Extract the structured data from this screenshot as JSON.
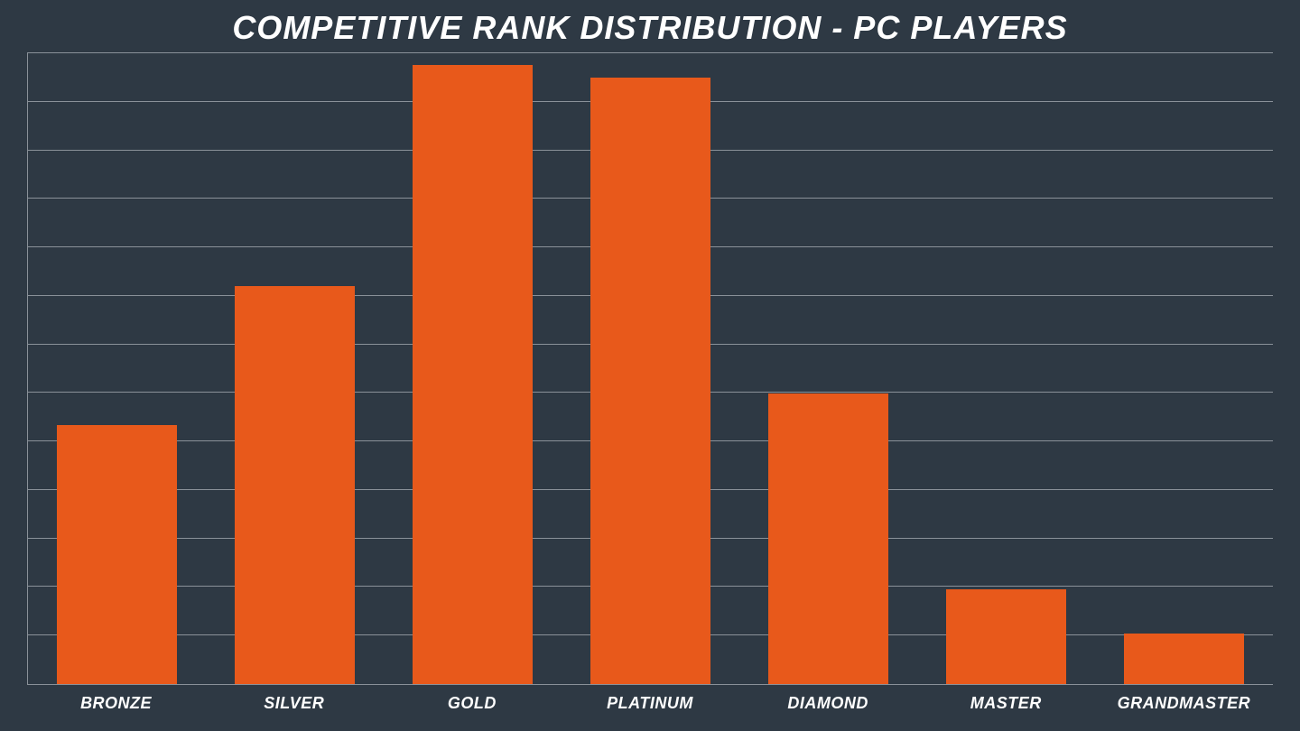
{
  "chart": {
    "type": "bar",
    "title": "COMPETITIVE RANK DISTRIBUTION - PC PLAYERS",
    "title_fontsize": 36,
    "title_color": "#ffffff",
    "background_color": "#2e3944",
    "grid_color": "#8a9199",
    "gridline_count": 14,
    "bar_color": "#e8591b",
    "bar_width_ratio": 0.68,
    "label_color": "#ffffff",
    "label_fontsize": 18,
    "ymax": 100,
    "categories": [
      "BRONZE",
      "SILVER",
      "GOLD",
      "PLATINUM",
      "DIAMOND",
      "MASTER",
      "GRANDMASTER"
    ],
    "values": [
      41,
      63,
      98,
      96,
      46,
      15,
      8
    ]
  }
}
